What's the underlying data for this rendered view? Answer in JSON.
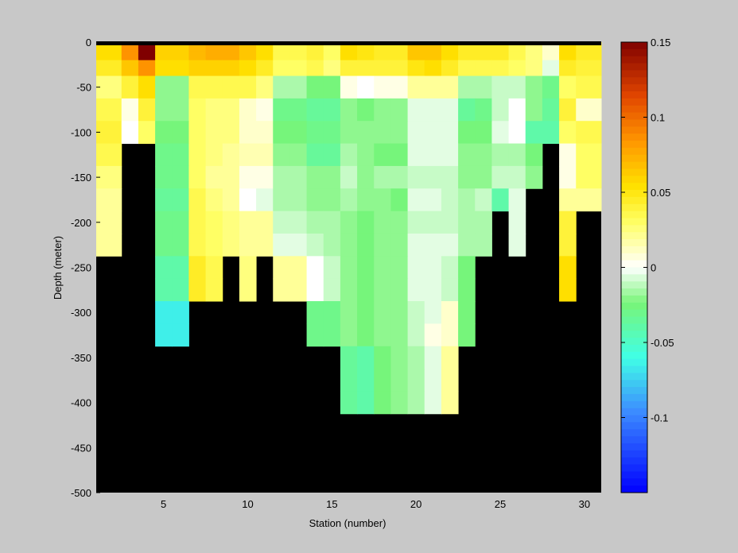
{
  "chart_data": {
    "type": "heatmap",
    "title": "",
    "xlabel": "Station (number)",
    "ylabel": "Depth (meter)",
    "xlim": [
      1,
      31
    ],
    "ylim": [
      -500,
      0
    ],
    "x_ticks": [
      5,
      10,
      15,
      20,
      25,
      30
    ],
    "y_ticks": [
      0,
      -50,
      -100,
      -150,
      -200,
      -250,
      -300,
      -350,
      -400,
      -450,
      -500
    ],
    "colorbar": {
      "range": [
        -0.15,
        0.15
      ],
      "ticks": [
        0.15,
        0.1,
        0.05,
        0,
        -0.05,
        -0.1
      ],
      "colormap": "blue-cyan-green-white-yellow-orange-darkred, 64 steps"
    },
    "no_data_color": "#000000",
    "background_color": "#c8c8c8",
    "stations": [
      2,
      3,
      4,
      5,
      6,
      7,
      8,
      9,
      10,
      11,
      12,
      13,
      14,
      15,
      16,
      17,
      18,
      19,
      20,
      21,
      22,
      23,
      24,
      25,
      26,
      27,
      28,
      29,
      30
    ],
    "depths": [
      -5,
      -15,
      -25,
      -50,
      -75,
      -100,
      -125,
      -150,
      -175,
      -200,
      -225,
      -250,
      -275,
      -300,
      -325,
      -350,
      -375,
      -400
    ],
    "values": [
      [
        0.055,
        0.085,
        0.15,
        0.06,
        0.06,
        0.07,
        0.075,
        0.075,
        0.065,
        0.055,
        0.035,
        0.035,
        0.04,
        0.03,
        0.055,
        0.05,
        0.045,
        0.045,
        0.065,
        0.065,
        0.055,
        0.045,
        0.045,
        0.045,
        0.035,
        0.025,
        0.01,
        0.055,
        0.045
      ],
      [
        0.055,
        0.085,
        0.15,
        0.06,
        0.06,
        0.07,
        0.075,
        0.075,
        0.065,
        0.055,
        0.035,
        0.035,
        0.04,
        0.03,
        0.055,
        0.05,
        0.045,
        0.045,
        0.065,
        0.065,
        0.055,
        0.045,
        0.045,
        0.045,
        0.035,
        0.025,
        0.01,
        0.055,
        0.045
      ],
      [
        0.045,
        0.065,
        0.085,
        0.055,
        0.055,
        0.06,
        0.06,
        0.06,
        0.055,
        0.045,
        0.03,
        0.03,
        0.035,
        0.025,
        0.04,
        0.04,
        0.04,
        0.04,
        0.05,
        0.055,
        0.045,
        0.035,
        0.035,
        0.035,
        0.03,
        0.025,
        -0.005,
        0.045,
        0.04
      ],
      [
        0.025,
        0.04,
        0.055,
        -0.02,
        -0.02,
        0.035,
        0.035,
        0.035,
        0.035,
        0.025,
        -0.015,
        -0.015,
        -0.025,
        -0.025,
        0.005,
        0.0,
        0.005,
        0.005,
        0.02,
        0.02,
        0.02,
        -0.015,
        -0.015,
        -0.01,
        -0.01,
        -0.02,
        -0.03,
        0.03,
        0.035
      ],
      [
        0.035,
        0.005,
        0.04,
        -0.02,
        -0.02,
        0.03,
        0.025,
        0.025,
        0.01,
        0.005,
        -0.03,
        -0.03,
        -0.035,
        -0.035,
        -0.02,
        -0.025,
        -0.02,
        -0.02,
        -0.005,
        -0.005,
        -0.005,
        -0.035,
        -0.03,
        -0.01,
        0.0,
        -0.02,
        -0.035,
        0.04,
        0.01
      ],
      [
        0.04,
        0.0,
        0.03,
        -0.025,
        -0.025,
        0.03,
        0.025,
        0.025,
        0.01,
        0.01,
        -0.025,
        -0.025,
        -0.03,
        -0.03,
        -0.02,
        -0.02,
        -0.02,
        -0.02,
        -0.005,
        -0.005,
        -0.005,
        -0.025,
        -0.025,
        -0.005,
        0.0,
        -0.04,
        -0.04,
        0.03,
        0.035
      ],
      [
        0.035,
        null,
        null,
        -0.03,
        -0.03,
        0.03,
        0.025,
        0.02,
        0.015,
        0.015,
        -0.02,
        -0.02,
        -0.035,
        -0.035,
        -0.015,
        -0.02,
        -0.025,
        -0.025,
        -0.005,
        -0.005,
        -0.005,
        -0.02,
        -0.02,
        -0.015,
        -0.015,
        -0.025,
        null,
        0.005,
        0.03
      ],
      [
        0.025,
        null,
        null,
        -0.03,
        -0.03,
        0.03,
        0.02,
        0.02,
        0.005,
        0.005,
        -0.015,
        -0.015,
        -0.02,
        -0.02,
        -0.01,
        -0.02,
        -0.015,
        -0.015,
        -0.01,
        -0.01,
        -0.01,
        -0.02,
        -0.02,
        -0.01,
        -0.01,
        -0.02,
        null,
        0.005,
        0.03
      ],
      [
        0.02,
        null,
        null,
        -0.035,
        -0.035,
        0.035,
        0.025,
        0.02,
        0.0,
        -0.005,
        -0.015,
        -0.015,
        -0.02,
        -0.02,
        -0.015,
        -0.02,
        -0.02,
        -0.025,
        -0.005,
        -0.005,
        -0.01,
        -0.015,
        -0.01,
        -0.04,
        -0.005,
        null,
        null,
        0.02,
        0.02
      ],
      [
        0.02,
        null,
        null,
        -0.03,
        -0.03,
        0.035,
        0.03,
        0.025,
        0.02,
        0.02,
        -0.01,
        -0.01,
        -0.015,
        -0.015,
        -0.02,
        -0.025,
        -0.02,
        -0.02,
        -0.01,
        -0.01,
        -0.01,
        -0.015,
        -0.015,
        null,
        -0.005,
        null,
        null,
        0.04,
        null
      ],
      [
        0.02,
        null,
        null,
        -0.03,
        -0.03,
        0.035,
        0.03,
        0.025,
        0.02,
        0.02,
        -0.005,
        -0.005,
        -0.01,
        -0.015,
        -0.02,
        -0.025,
        -0.02,
        -0.02,
        -0.005,
        -0.005,
        -0.005,
        -0.015,
        -0.015,
        null,
        -0.005,
        null,
        null,
        0.04,
        null
      ],
      [
        null,
        null,
        null,
        -0.04,
        -0.04,
        0.045,
        0.035,
        null,
        0.025,
        null,
        0.02,
        0.02,
        0.0,
        -0.01,
        -0.02,
        -0.025,
        -0.02,
        -0.02,
        -0.005,
        -0.005,
        -0.01,
        -0.025,
        null,
        null,
        null,
        null,
        null,
        0.055,
        null
      ],
      [
        null,
        null,
        null,
        -0.04,
        -0.04,
        0.045,
        0.035,
        null,
        0.025,
        null,
        0.02,
        0.02,
        0.0,
        -0.01,
        -0.02,
        -0.025,
        -0.02,
        -0.02,
        -0.005,
        -0.005,
        -0.01,
        -0.025,
        null,
        null,
        null,
        null,
        null,
        0.055,
        null
      ],
      [
        null,
        null,
        null,
        -0.065,
        -0.065,
        null,
        null,
        null,
        null,
        null,
        null,
        null,
        -0.03,
        -0.03,
        -0.02,
        -0.025,
        -0.02,
        -0.02,
        -0.01,
        -0.005,
        0.01,
        -0.025,
        null,
        null,
        null,
        null,
        null,
        null,
        null
      ],
      [
        null,
        null,
        null,
        -0.065,
        -0.065,
        null,
        null,
        null,
        null,
        null,
        null,
        null,
        -0.03,
        -0.03,
        -0.02,
        -0.025,
        -0.02,
        -0.02,
        -0.01,
        0.005,
        0.01,
        -0.025,
        null,
        null,
        null,
        null,
        null,
        null,
        null
      ],
      [
        null,
        null,
        null,
        null,
        null,
        null,
        null,
        null,
        null,
        null,
        null,
        null,
        null,
        null,
        -0.035,
        -0.04,
        -0.025,
        -0.02,
        -0.015,
        -0.005,
        0.02,
        null,
        null,
        null,
        null,
        null,
        null,
        null,
        null
      ],
      [
        null,
        null,
        null,
        null,
        null,
        null,
        null,
        null,
        null,
        null,
        null,
        null,
        null,
        null,
        -0.035,
        -0.04,
        -0.025,
        -0.02,
        -0.015,
        -0.005,
        0.02,
        null,
        null,
        null,
        null,
        null,
        null,
        null,
        null
      ],
      [
        null,
        null,
        null,
        null,
        null,
        null,
        null,
        null,
        null,
        null,
        null,
        null,
        null,
        null,
        -0.035,
        -0.04,
        -0.025,
        -0.02,
        -0.015,
        -0.005,
        0.02,
        null,
        null,
        null,
        null,
        null,
        null,
        null,
        null
      ]
    ]
  }
}
